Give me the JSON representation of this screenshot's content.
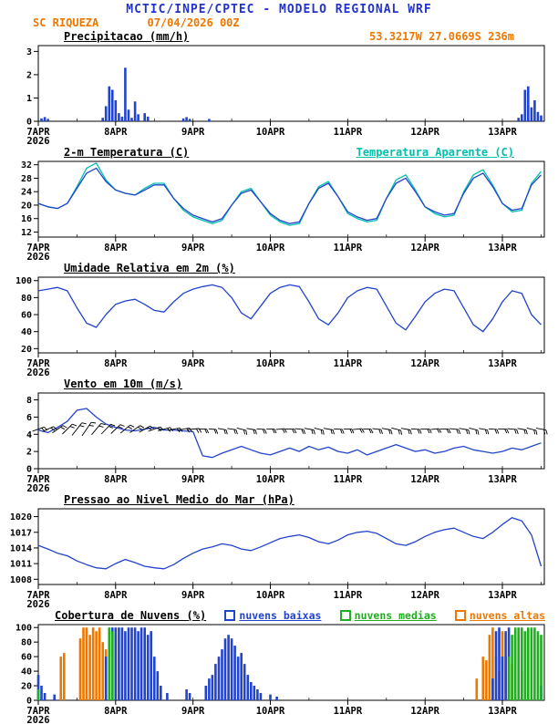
{
  "header": {
    "title": "MCTIC/INPE/CPTEC - MODELO REGIONAL WRF",
    "station": "SC RIQUEZA",
    "run": "07/04/2026 00Z",
    "coords": "53.3217W 27.0669S 236m"
  },
  "colors": {
    "title_blue": "#2233cc",
    "orange": "#ee7700",
    "line_blue": "#2244cc",
    "cyan": "#00c0ae",
    "green": "#1fae1f"
  },
  "x_axis": {
    "hours_total": 157,
    "tick_hours": [
      0,
      24,
      48,
      72,
      96,
      120,
      144
    ],
    "tick_labels": [
      "7APR",
      "8APR",
      "9APR",
      "10APR",
      "11APR",
      "12APR",
      "13APR"
    ],
    "year_label": "2026"
  },
  "chart_data": [
    {
      "id": "precip",
      "type": "bar",
      "title": "Precipitacao (mm/h)",
      "ylim": [
        0,
        3.25
      ],
      "yticks": [
        0,
        1,
        2,
        3
      ],
      "series": [
        {
          "name": "precipitacao",
          "type": "bar",
          "color": "line_blue",
          "x": [
            1,
            2,
            3,
            20,
            21,
            22,
            23,
            24,
            25,
            26,
            27,
            28,
            29,
            30,
            31,
            33,
            34,
            45,
            46,
            47,
            53,
            149,
            150,
            151,
            152,
            153,
            154,
            155,
            156
          ],
          "y": [
            0.12,
            0.18,
            0.1,
            0.15,
            0.65,
            1.5,
            1.35,
            0.9,
            0.35,
            0.2,
            2.3,
            0.5,
            0.15,
            0.85,
            0.3,
            0.35,
            0.2,
            0.12,
            0.18,
            0.1,
            0.1,
            0.15,
            0.3,
            1.35,
            1.5,
            0.6,
            0.9,
            0.4,
            0.25
          ]
        }
      ]
    },
    {
      "id": "temp2m",
      "type": "line",
      "title": "2-m Temperatura (C)",
      "right_label": "Temperatura Aparente (C)",
      "ylim": [
        10.5,
        33
      ],
      "yticks": [
        12,
        16,
        20,
        24,
        28,
        32
      ],
      "series": [
        {
          "name": "Temperatura Aparente (C)",
          "type": "line",
          "color": "cyan",
          "x_start": 0,
          "x_step": 3,
          "y": [
            20.5,
            19.5,
            19,
            20.5,
            25.5,
            31,
            32.5,
            27.5,
            24.5,
            23.5,
            23,
            25,
            26.5,
            26.5,
            22,
            18.5,
            16.5,
            15.5,
            14.5,
            15.5,
            20,
            24,
            25,
            21,
            17,
            15,
            14,
            14.5,
            20.5,
            25.5,
            27,
            22.5,
            17.5,
            16,
            15,
            15.5,
            22,
            27.5,
            29,
            24.5,
            19.5,
            17.5,
            16.5,
            17,
            24,
            29,
            30.5,
            26,
            20.5,
            18,
            18.5,
            26.5,
            30
          ]
        },
        {
          "name": "2-m Temperatura (C)",
          "type": "line",
          "color": "line_blue",
          "x_start": 0,
          "x_step": 3,
          "y": [
            20.5,
            19.5,
            19,
            20.5,
            25,
            29.5,
            31,
            27,
            24.5,
            23.5,
            23,
            24.5,
            26,
            26,
            22,
            19,
            17,
            16,
            15,
            16,
            20,
            23.5,
            24.5,
            21,
            17.5,
            15.5,
            14.5,
            15,
            20.5,
            25,
            26.5,
            22.5,
            18,
            16.5,
            15.5,
            16,
            22,
            26.5,
            28,
            24,
            19.5,
            18,
            17,
            17.5,
            23.5,
            28,
            29.5,
            25.5,
            20.5,
            18.5,
            19,
            26,
            29
          ]
        }
      ]
    },
    {
      "id": "rh2m",
      "type": "line",
      "title": "Umidade Relativa em 2m (%)",
      "ylim": [
        15,
        104
      ],
      "yticks": [
        20,
        40,
        60,
        80,
        100
      ],
      "series": [
        {
          "name": "umidade relativa",
          "type": "line",
          "color": "line_blue",
          "x_start": 0,
          "x_step": 3,
          "y": [
            88,
            90,
            92,
            88,
            68,
            50,
            45,
            60,
            72,
            76,
            78,
            72,
            65,
            63,
            75,
            85,
            90,
            93,
            95,
            92,
            80,
            62,
            55,
            70,
            85,
            92,
            95,
            93,
            75,
            55,
            48,
            62,
            80,
            88,
            92,
            90,
            70,
            50,
            42,
            58,
            75,
            85,
            90,
            88,
            68,
            48,
            40,
            55,
            75,
            88,
            85,
            60,
            48
          ]
        }
      ]
    },
    {
      "id": "wind10m",
      "type": "line",
      "title": "Vento em 10m (m/s)",
      "ylim": [
        0,
        8.8
      ],
      "yticks": [
        0,
        2,
        4,
        6,
        8
      ],
      "series": [
        {
          "name": "velocidade do vento",
          "type": "line",
          "color": "line_blue",
          "x_start": 0,
          "x_step": 3,
          "y": [
            4.5,
            4.2,
            4.8,
            5.5,
            6.8,
            7,
            6,
            5.2,
            4.8,
            4.5,
            4.4,
            4.6,
            4.8,
            4.5,
            4.5,
            4.4,
            4.3,
            1.5,
            1.3,
            1.8,
            2.2,
            2.6,
            2.2,
            1.8,
            1.6,
            2,
            2.4,
            2,
            2.6,
            2.2,
            2.5,
            2,
            1.8,
            2.2,
            1.6,
            2,
            2.4,
            2.8,
            2.4,
            2,
            2.2,
            1.8,
            2,
            2.4,
            2.6,
            2.2,
            2,
            1.8,
            2,
            2.4,
            2.2,
            2.6,
            3
          ]
        }
      ],
      "barbs": {
        "y": 4.6,
        "step": 3,
        "dirs": [
          200,
          205,
          215,
          225,
          232,
          236,
          230,
          226,
          224,
          220,
          215,
          210,
          200,
          195,
          190,
          190,
          185,
          180,
          175,
          170,
          172,
          166,
          170,
          176,
          180,
          186,
          180,
          174,
          170,
          166,
          170,
          176,
          180,
          186,
          180,
          174,
          170,
          166,
          170,
          176,
          180,
          186,
          180,
          174,
          170,
          166,
          170,
          176,
          180,
          174,
          170,
          166,
          170
        ]
      }
    },
    {
      "id": "slp",
      "type": "line",
      "title": "Pressao ao Nivel Medio do Mar (hPa)",
      "ylim": [
        1007,
        1021.5
      ],
      "yticks": [
        1008,
        1011,
        1014,
        1017,
        1020
      ],
      "series": [
        {
          "name": "pressao ao nivel do mar",
          "type": "line",
          "color": "line_blue",
          "x_start": 0,
          "x_step": 3,
          "y": [
            1014.5,
            1013.8,
            1013,
            1012.5,
            1011.5,
            1010.8,
            1010.2,
            1010,
            1011,
            1011.8,
            1011.2,
            1010.5,
            1010.2,
            1010,
            1010.8,
            1012,
            1013,
            1013.8,
            1014.2,
            1014.8,
            1014.5,
            1013.8,
            1013.5,
            1014.2,
            1015,
            1015.8,
            1016.2,
            1016.5,
            1016,
            1015.2,
            1014.8,
            1015.5,
            1016.5,
            1017,
            1017.2,
            1016.8,
            1015.8,
            1014.8,
            1014.5,
            1015.2,
            1016.2,
            1017,
            1017.5,
            1017.8,
            1017,
            1016.2,
            1015.8,
            1017,
            1018.5,
            1019.8,
            1019.2,
            1016.5,
            1010.5
          ]
        }
      ]
    },
    {
      "id": "clouds",
      "type": "bar",
      "title": "Cobertura de Nuvens (%)",
      "ylim": [
        0,
        104
      ],
      "yticks": [
        0,
        20,
        40,
        60,
        80,
        100
      ],
      "legend": [
        {
          "label": "nuvens baixas",
          "color": "line_blue"
        },
        {
          "label": "nuvens medias",
          "color": "green"
        },
        {
          "label": "nuvens altas",
          "color": "orange"
        }
      ],
      "series": [
        {
          "name": "nuvens altas",
          "type": "bar",
          "color": "orange",
          "x": [
            7,
            8,
            13,
            14,
            15,
            16,
            17,
            18,
            19,
            20,
            21,
            136,
            138,
            139,
            140,
            141,
            142,
            143,
            144,
            145,
            147
          ],
          "y": [
            60,
            65,
            85,
            100,
            100,
            90,
            100,
            95,
            100,
            80,
            70,
            30,
            60,
            55,
            90,
            100,
            60,
            40,
            95,
            60,
            50
          ]
        },
        {
          "name": "nuvens baixas",
          "type": "bar",
          "color": "line_blue",
          "x": [
            0,
            1,
            2,
            5,
            21,
            22,
            23,
            24,
            25,
            26,
            27,
            28,
            29,
            30,
            31,
            32,
            33,
            34,
            35,
            36,
            37,
            38,
            40,
            46,
            47,
            52,
            53,
            54,
            55,
            56,
            57,
            58,
            59,
            60,
            61,
            62,
            63,
            64,
            65,
            66,
            67,
            68,
            69,
            72,
            74,
            141,
            142,
            143,
            144,
            145,
            146,
            150,
            156
          ],
          "y": [
            35,
            20,
            10,
            8,
            60,
            95,
            100,
            100,
            100,
            100,
            95,
            100,
            100,
            100,
            95,
            100,
            100,
            90,
            95,
            60,
            40,
            20,
            10,
            15,
            10,
            20,
            30,
            35,
            50,
            60,
            70,
            85,
            90,
            85,
            75,
            60,
            65,
            50,
            35,
            25,
            20,
            15,
            10,
            8,
            5,
            30,
            95,
            100,
            60,
            95,
            100,
            40,
            20
          ]
        },
        {
          "name": "nuvens medias",
          "type": "bar",
          "color": "green",
          "x": [
            0,
            22,
            23,
            146,
            147,
            148,
            149,
            150,
            151,
            152,
            153,
            154,
            155,
            156
          ],
          "y": [
            15,
            100,
            95,
            60,
            90,
            100,
            100,
            100,
            95,
            100,
            100,
            100,
            95,
            90
          ]
        }
      ]
    }
  ]
}
